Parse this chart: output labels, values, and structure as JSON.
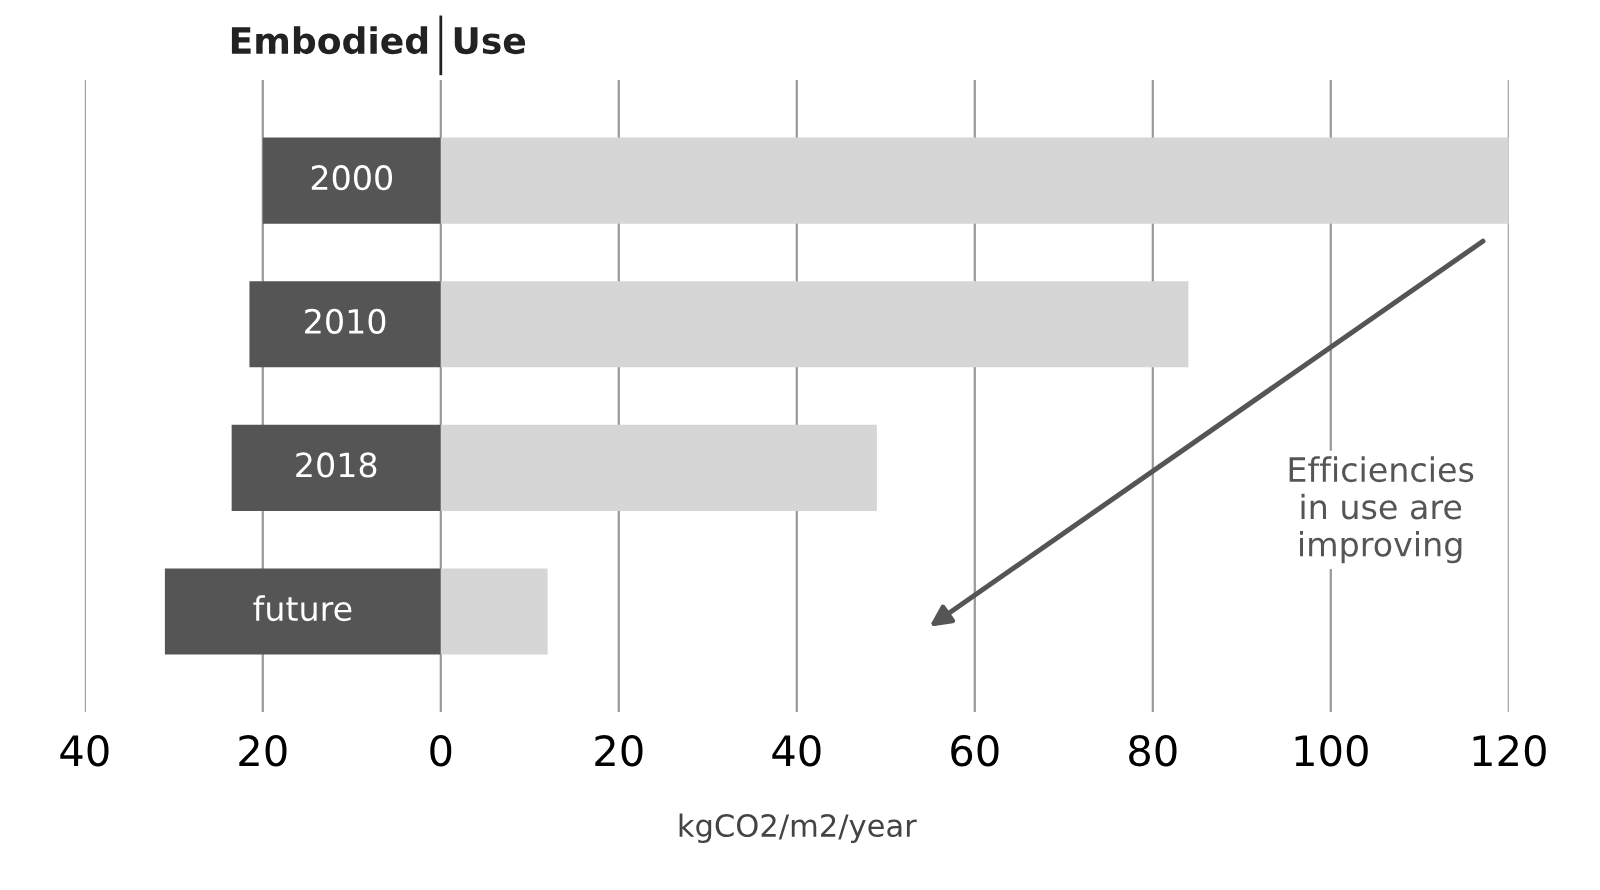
{
  "chart_data": {
    "type": "bar",
    "orientation": "horizontal",
    "stacked": true,
    "categories": [
      "2000",
      "2010",
      "2018",
      "future"
    ],
    "series": [
      {
        "name": "Embodied",
        "color": "#555555",
        "values": [
          -20,
          -21.5,
          -23.5,
          -31
        ]
      },
      {
        "name": "Use",
        "color": "#d6d6d6",
        "values": [
          120,
          84,
          49,
          12
        ]
      }
    ],
    "xlim": [
      -40,
      120
    ],
    "xticks": [
      {
        "value": -40,
        "label": "40"
      },
      {
        "value": -20,
        "label": "20"
      },
      0,
      20,
      40,
      60,
      80,
      100,
      120
    ],
    "xlabel": "kgCO2/m2/year",
    "grid": "x",
    "legend": false,
    "tick_labels": "x",
    "annotations": [
      "Efficiencies\nin use are\nimproving"
    ]
  }
}
